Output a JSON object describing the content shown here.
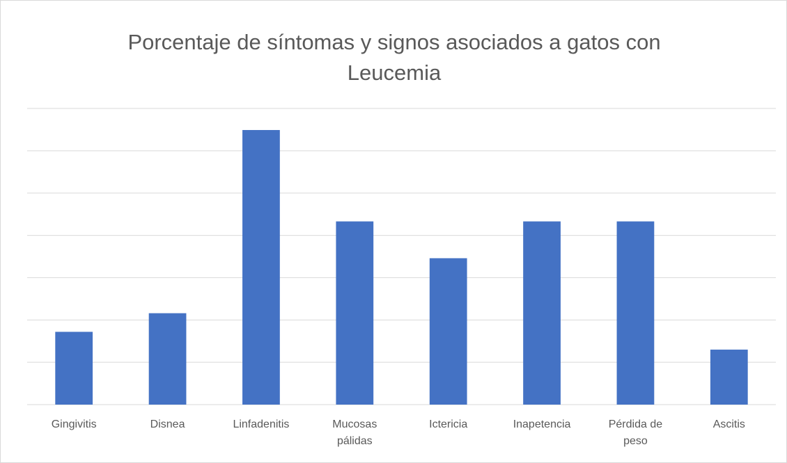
{
  "chart_data": {
    "type": "bar",
    "title": "Porcentaje de síntomas y signos asociados a gatos con Leucemia",
    "categories": [
      "Gingivitis",
      "Disnea",
      "Linfadenitis",
      "Mucosas pálidas",
      "Ictericia",
      "Inapetencia",
      "Pérdida de peso",
      "Ascitis"
    ],
    "values": [
      1.72,
      2.16,
      6.49,
      4.33,
      3.46,
      4.33,
      4.33,
      1.3
    ],
    "color": "#4472c4",
    "ylim": [
      0,
      7
    ],
    "yticks": [
      0,
      1,
      2,
      3,
      4,
      5,
      6,
      7
    ],
    "grid": true
  }
}
